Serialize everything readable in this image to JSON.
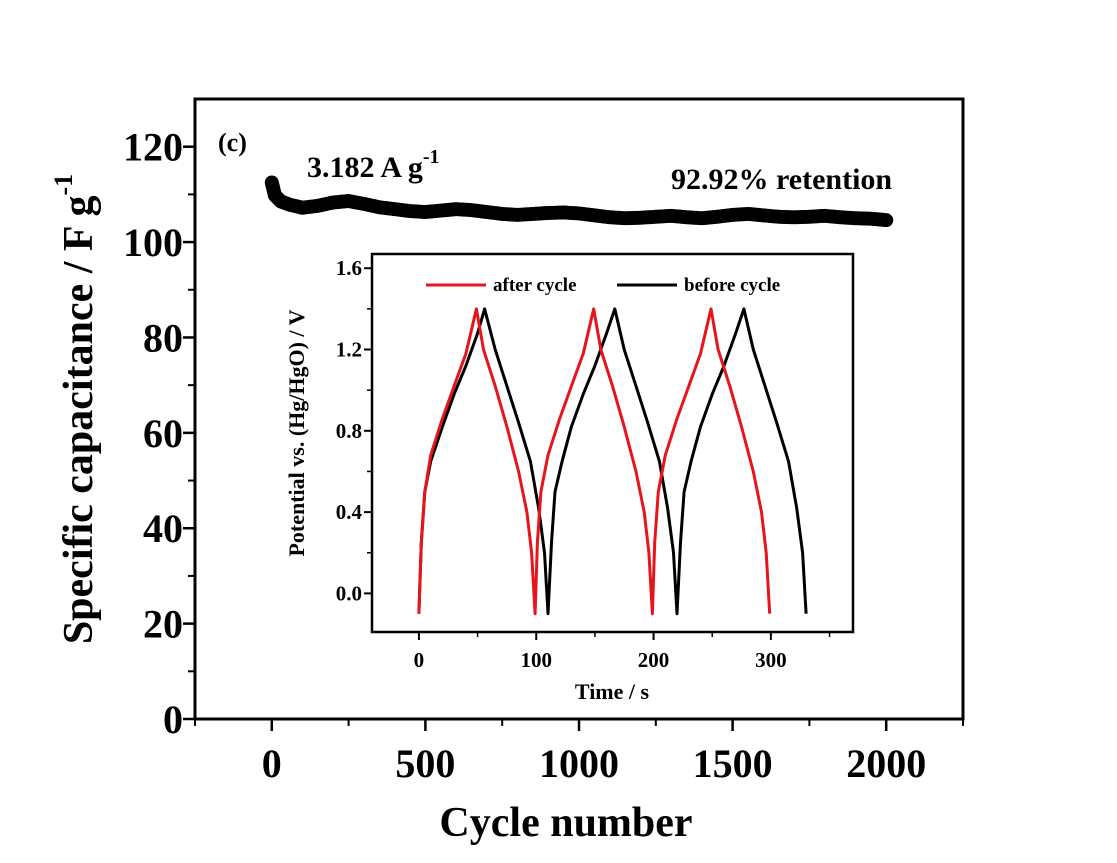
{
  "chart_data": [
    {
      "type": "scatter",
      "panel_label": "(c)",
      "xlabel": "Cycle number",
      "ylabel_main": "Specific capacitance / F g",
      "ylabel_sup": "-1",
      "xlim": [
        -250,
        2250
      ],
      "ylim": [
        0,
        130
      ],
      "xticks": [
        0,
        500,
        1000,
        1500,
        2000
      ],
      "xtick_labels": [
        "0",
        "500",
        "1000",
        "1500",
        "2000"
      ],
      "yticks": [
        0,
        20,
        40,
        60,
        80,
        100,
        120
      ],
      "ytick_labels": [
        "0",
        "20",
        "40",
        "60",
        "80",
        "100",
        "120"
      ],
      "annotation_current_main": "3.182 A g",
      "annotation_current_sup": "-1",
      "annotation_retention": "92.92% retention",
      "series": [
        {
          "color": "#000000",
          "points": [
            [
              0,
              112.5
            ],
            [
              10,
              109.8
            ],
            [
              30,
              108.5
            ],
            [
              60,
              107.8
            ],
            [
              100,
              107.2
            ],
            [
              150,
              107.6
            ],
            [
              200,
              108.3
            ],
            [
              250,
              108.6
            ],
            [
              300,
              108.0
            ],
            [
              350,
              107.3
            ],
            [
              400,
              106.9
            ],
            [
              450,
              106.5
            ],
            [
              500,
              106.3
            ],
            [
              550,
              106.6
            ],
            [
              600,
              106.9
            ],
            [
              650,
              106.7
            ],
            [
              700,
              106.3
            ],
            [
              750,
              105.9
            ],
            [
              800,
              105.7
            ],
            [
              850,
              105.9
            ],
            [
              900,
              106.1
            ],
            [
              950,
              106.2
            ],
            [
              1000,
              106.0
            ],
            [
              1050,
              105.6
            ],
            [
              1100,
              105.2
            ],
            [
              1150,
              105.0
            ],
            [
              1200,
              105.1
            ],
            [
              1250,
              105.3
            ],
            [
              1300,
              105.5
            ],
            [
              1350,
              105.2
            ],
            [
              1400,
              105.0
            ],
            [
              1450,
              105.3
            ],
            [
              1500,
              105.7
            ],
            [
              1550,
              105.9
            ],
            [
              1600,
              105.6
            ],
            [
              1650,
              105.3
            ],
            [
              1700,
              105.2
            ],
            [
              1750,
              105.3
            ],
            [
              1800,
              105.5
            ],
            [
              1850,
              105.2
            ],
            [
              1900,
              105.0
            ],
            [
              1950,
              104.9
            ],
            [
              2000,
              104.6
            ]
          ]
        }
      ]
    },
    {
      "type": "line",
      "xlabel": "Time / s",
      "ylabel": "Potential vs. (Hg/HgO) / V",
      "xlim": [
        -40,
        370
      ],
      "ylim": [
        -0.19,
        1.67
      ],
      "xticks": [
        0,
        100,
        200,
        300
      ],
      "xtick_labels": [
        "0",
        "100",
        "200",
        "300"
      ],
      "yticks": [
        0.0,
        0.4,
        0.8,
        1.2,
        1.6
      ],
      "ytick_labels": [
        "0.0",
        "0.4",
        "0.8",
        "1.2",
        "1.6"
      ],
      "legend_position": "top",
      "series": [
        {
          "name": "after cycle",
          "color": "#e8141c",
          "x": [
            0,
            2,
            5,
            10,
            20,
            30,
            40,
            49,
            55,
            65,
            75,
            85,
            92,
            96,
            99,
            101,
            104,
            110,
            120,
            130,
            140,
            149,
            155,
            165,
            175,
            185,
            192,
            196,
            199,
            201,
            204,
            210,
            220,
            230,
            240,
            249,
            255,
            265,
            275,
            285,
            292,
            296,
            299
          ],
          "y": [
            -0.1,
            0.25,
            0.5,
            0.68,
            0.86,
            1.02,
            1.18,
            1.4,
            1.2,
            1.02,
            0.82,
            0.6,
            0.4,
            0.2,
            -0.1,
            0.25,
            0.5,
            0.68,
            0.86,
            1.02,
            1.18,
            1.4,
            1.2,
            1.02,
            0.82,
            0.6,
            0.4,
            0.2,
            -0.1,
            0.25,
            0.5,
            0.68,
            0.86,
            1.02,
            1.18,
            1.4,
            1.2,
            1.02,
            0.82,
            0.6,
            0.4,
            0.2,
            -0.1
          ]
        },
        {
          "name": "before cycle",
          "color": "#000000",
          "x": [
            0,
            2,
            5,
            10,
            20,
            30,
            40,
            50,
            56,
            65,
            75,
            85,
            95,
            102,
            107,
            110,
            113,
            116,
            122,
            130,
            140,
            150,
            160,
            167,
            175,
            185,
            195,
            205,
            212,
            217,
            220,
            223,
            226,
            232,
            240,
            250,
            260,
            270,
            277,
            285,
            295,
            305,
            315,
            322,
            327,
            330
          ],
          "y": [
            -0.1,
            0.25,
            0.5,
            0.65,
            0.82,
            0.98,
            1.12,
            1.28,
            1.4,
            1.2,
            1.02,
            0.84,
            0.65,
            0.42,
            0.2,
            -0.1,
            0.25,
            0.5,
            0.65,
            0.82,
            0.98,
            1.12,
            1.28,
            1.4,
            1.2,
            1.02,
            0.84,
            0.65,
            0.42,
            0.2,
            -0.1,
            0.25,
            0.5,
            0.65,
            0.82,
            0.98,
            1.12,
            1.28,
            1.4,
            1.2,
            1.02,
            0.84,
            0.65,
            0.42,
            0.2,
            -0.1
          ]
        }
      ]
    }
  ]
}
